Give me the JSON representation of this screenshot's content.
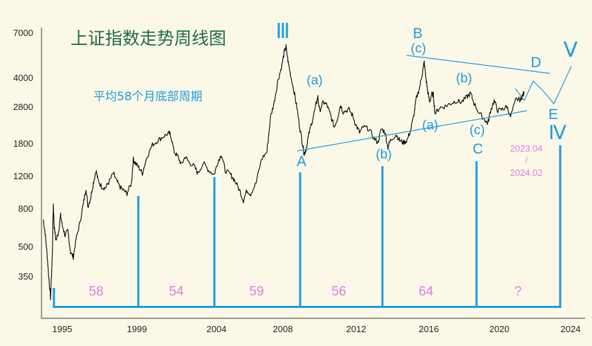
{
  "chart_data": {
    "type": "line",
    "title": "上证指数走势周线图",
    "subtitle": "平均58个月底部周期",
    "y_scale": "log",
    "ylim": [
      260,
      7600
    ],
    "xlim": [
      1994.4,
      2024.3
    ],
    "y_ticks": [
      "7000",
      "4000",
      "2800",
      "1800",
      "1200",
      "800",
      "500",
      "350"
    ],
    "x_ticks": [
      "1995",
      "1999",
      "2004",
      "2008",
      "2012",
      "2016",
      "2020",
      "2024"
    ],
    "series": [
      {
        "points": [
          [
            1994.5,
            820
          ],
          [
            1994.6,
            700
          ],
          [
            1994.7,
            560
          ],
          [
            1994.8,
            420
          ],
          [
            1994.9,
            330
          ],
          [
            1995.0,
            560
          ],
          [
            1995.05,
            980
          ],
          [
            1995.1,
            750
          ],
          [
            1995.2,
            640
          ],
          [
            1995.35,
            720
          ],
          [
            1995.45,
            860
          ],
          [
            1995.55,
            760
          ],
          [
            1995.7,
            680
          ],
          [
            1995.85,
            720
          ],
          [
            1996.0,
            560
          ],
          [
            1996.15,
            530
          ],
          [
            1996.3,
            650
          ],
          [
            1996.5,
            780
          ],
          [
            1996.7,
            980
          ],
          [
            1996.85,
            1180
          ],
          [
            1996.95,
            950
          ],
          [
            1997.1,
            1050
          ],
          [
            1997.25,
            1250
          ],
          [
            1997.4,
            1450
          ],
          [
            1997.5,
            1300
          ],
          [
            1997.7,
            1200
          ],
          [
            1997.9,
            1180
          ],
          [
            1998.1,
            1260
          ],
          [
            1998.35,
            1400
          ],
          [
            1998.5,
            1300
          ],
          [
            1998.7,
            1200
          ],
          [
            1998.9,
            1150
          ],
          [
            1999.1,
            1110
          ],
          [
            1999.35,
            1250
          ],
          [
            1999.45,
            1650
          ],
          [
            1999.55,
            1580
          ],
          [
            1999.75,
            1500
          ],
          [
            1999.95,
            1400
          ],
          [
            2000.2,
            1700
          ],
          [
            2000.5,
            1950
          ],
          [
            2000.8,
            2050
          ],
          [
            2001.1,
            2150
          ],
          [
            2001.4,
            2230
          ],
          [
            2001.5,
            2200
          ],
          [
            2001.7,
            1800
          ],
          [
            2001.9,
            1700
          ],
          [
            2002.1,
            1550
          ],
          [
            2002.3,
            1700
          ],
          [
            2002.5,
            1600
          ],
          [
            2002.8,
            1520
          ],
          [
            2003.0,
            1400
          ],
          [
            2003.3,
            1580
          ],
          [
            2003.6,
            1450
          ],
          [
            2003.9,
            1380
          ],
          [
            2004.1,
            1600
          ],
          [
            2004.3,
            1750
          ],
          [
            2004.5,
            1450
          ],
          [
            2004.8,
            1380
          ],
          [
            2005.0,
            1300
          ],
          [
            2005.3,
            1150
          ],
          [
            2005.5,
            1020
          ],
          [
            2005.7,
            1150
          ],
          [
            2005.9,
            1100
          ],
          [
            2006.2,
            1250
          ],
          [
            2006.5,
            1650
          ],
          [
            2006.8,
            1800
          ],
          [
            2007.0,
            2700
          ],
          [
            2007.2,
            3200
          ],
          [
            2007.4,
            4100
          ],
          [
            2007.6,
            4800
          ],
          [
            2007.75,
            5700
          ],
          [
            2007.85,
            6100
          ],
          [
            2007.95,
            5200
          ],
          [
            2008.1,
            4400
          ],
          [
            2008.3,
            3600
          ],
          [
            2008.45,
            3000
          ],
          [
            2008.6,
            2400
          ],
          [
            2008.75,
            2000
          ],
          [
            2008.85,
            1750
          ],
          [
            2008.95,
            1850
          ],
          [
            2009.1,
            2200
          ],
          [
            2009.3,
            2600
          ],
          [
            2009.5,
            3100
          ],
          [
            2009.6,
            3400
          ],
          [
            2009.7,
            2900
          ],
          [
            2009.9,
            3200
          ],
          [
            2010.1,
            3100
          ],
          [
            2010.3,
            2750
          ],
          [
            2010.5,
            2400
          ],
          [
            2010.65,
            2600
          ],
          [
            2010.85,
            3100
          ],
          [
            2011.0,
            2850
          ],
          [
            2011.3,
            2950
          ],
          [
            2011.5,
            2750
          ],
          [
            2011.7,
            2450
          ],
          [
            2011.9,
            2250
          ],
          [
            2012.1,
            2400
          ],
          [
            2012.4,
            2350
          ],
          [
            2012.7,
            2100
          ],
          [
            2012.9,
            2000
          ],
          [
            2013.1,
            2350
          ],
          [
            2013.3,
            2250
          ],
          [
            2013.45,
            1900
          ],
          [
            2013.6,
            2050
          ],
          [
            2013.9,
            2200
          ],
          [
            2014.1,
            2050
          ],
          [
            2014.3,
            2000
          ],
          [
            2014.5,
            2050
          ],
          [
            2014.7,
            2300
          ],
          [
            2014.9,
            2800
          ],
          [
            2015.0,
            3300
          ],
          [
            2015.2,
            3800
          ],
          [
            2015.35,
            4500
          ],
          [
            2015.45,
            5100
          ],
          [
            2015.55,
            4200
          ],
          [
            2015.65,
            3600
          ],
          [
            2015.75,
            3200
          ],
          [
            2015.85,
            3500
          ],
          [
            2015.95,
            3500
          ],
          [
            2016.05,
            2800
          ],
          [
            2016.3,
            3000
          ],
          [
            2016.6,
            3050
          ],
          [
            2016.9,
            3150
          ],
          [
            2017.2,
            3250
          ],
          [
            2017.5,
            3200
          ],
          [
            2017.8,
            3400
          ],
          [
            2018.0,
            3550
          ],
          [
            2018.2,
            3150
          ],
          [
            2018.5,
            2800
          ],
          [
            2018.8,
            2600
          ],
          [
            2018.95,
            2500
          ],
          [
            2019.1,
            2900
          ],
          [
            2019.3,
            3250
          ],
          [
            2019.5,
            2900
          ],
          [
            2019.8,
            2950
          ],
          [
            2020.0,
            3050
          ],
          [
            2020.2,
            2700
          ],
          [
            2020.5,
            3300
          ],
          [
            2020.75,
            3300
          ],
          [
            2020.85,
            3450
          ],
          [
            2020.95,
            3550
          ]
        ]
      }
    ],
    "wave_labels": {
      "w3": "Ⅲ",
      "a1": "(a)",
      "A": "A",
      "b1": "(b)",
      "B": "B",
      "c1": "(c)",
      "a2": "(a)",
      "b2": "(b)",
      "c2": "(c)",
      "C": "C",
      "D": "D",
      "E": "E",
      "w4": "Ⅳ",
      "w5": "Ⅴ"
    },
    "cycle_months": [
      "58",
      "54",
      "59",
      "56",
      "64",
      "?"
    ],
    "forecast_window": {
      "start": "2023.04",
      "sep": "/",
      "end": "2024.02"
    },
    "colors": {
      "line": "#000000",
      "annotation": "#1a9be0",
      "cycle": "#e27ae6",
      "title": "#1e6b47",
      "background": "#fcf8e8"
    }
  }
}
